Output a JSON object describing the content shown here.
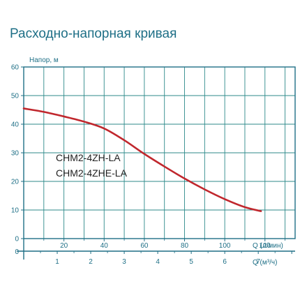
{
  "title": "Расходно-напорная кривая",
  "chart_data": {
    "type": "line",
    "title": "Расходно-напорная кривая",
    "ylabel": "Напор, м",
    "xlabel": "Q (л/мин)",
    "x2label": "Q (м³/ч)",
    "ylim": [
      0,
      60
    ],
    "xlim": [
      0,
      135
    ],
    "yticks": [
      0,
      10,
      20,
      30,
      40,
      50,
      60
    ],
    "xticks": [
      20,
      40,
      60,
      80,
      100,
      120
    ],
    "x2ticks": [
      1,
      2,
      3,
      4,
      5,
      6,
      7
    ],
    "x2_axis_zero": "0",
    "grid": true,
    "annotations": [
      "CHM2-4ZH-LA",
      "CHM2-4ZHE-LA"
    ],
    "series": [
      {
        "color": "#c0272d",
        "x": [
          0,
          10,
          20,
          30,
          40,
          50,
          60,
          70,
          80,
          90,
          100,
          110,
          118
        ],
        "y": [
          45.5,
          44.3,
          42.7,
          40.9,
          38.5,
          34.4,
          29.6,
          25.2,
          21.0,
          17.2,
          13.8,
          11.0,
          9.6
        ]
      }
    ]
  }
}
